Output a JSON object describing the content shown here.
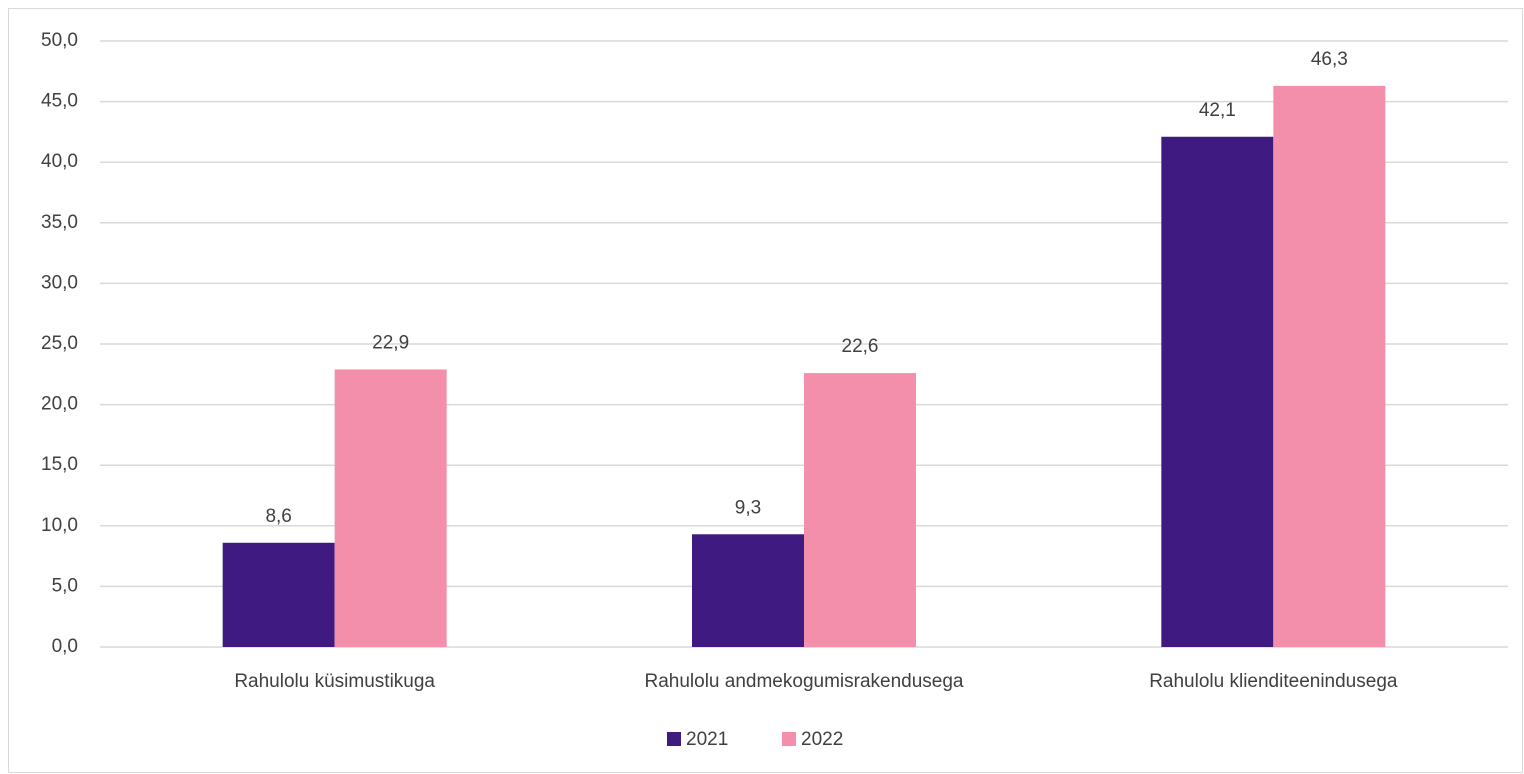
{
  "chart_data": {
    "type": "bar",
    "categories": [
      "Rahulolu küsimustikuga",
      "Rahulolu andmekogumisrakendusega",
      "Rahulolu klienditeenindusega"
    ],
    "series": [
      {
        "name": "2021",
        "color": "#3f1a80",
        "values": [
          8.6,
          9.3,
          42.1
        ],
        "value_labels": [
          "8,6",
          "9,3",
          "42,1"
        ]
      },
      {
        "name": "2022",
        "color": "#f48fab",
        "values": [
          22.9,
          22.6,
          46.3
        ],
        "value_labels": [
          "22,9",
          "22,6",
          "46,3"
        ]
      }
    ],
    "ylim": [
      0,
      50
    ],
    "yticks": [
      {
        "value": 0,
        "label": "0,0"
      },
      {
        "value": 5,
        "label": "5,0"
      },
      {
        "value": 10,
        "label": "10,0"
      },
      {
        "value": 15,
        "label": "15,0"
      },
      {
        "value": 20,
        "label": "20,0"
      },
      {
        "value": 25,
        "label": "25,0"
      },
      {
        "value": 30,
        "label": "30,0"
      },
      {
        "value": 35,
        "label": "35,0"
      },
      {
        "value": 40,
        "label": "40,0"
      },
      {
        "value": 45,
        "label": "45,0"
      },
      {
        "value": 50,
        "label": "50,0"
      }
    ],
    "grid": true,
    "legend": "bottom"
  }
}
